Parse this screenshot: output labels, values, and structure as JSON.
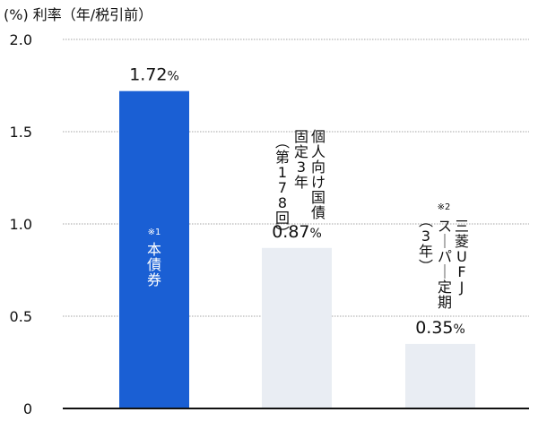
{
  "chart_data": {
    "type": "bar",
    "unit_label": "(%) 利率（年/税引前）",
    "ylim": [
      0,
      2.0
    ],
    "yticks": [
      "2.0",
      "1.5",
      "1.0",
      "0.5",
      "0"
    ],
    "ytick_values": [
      2.0,
      1.5,
      1.0,
      0.5,
      0
    ],
    "grid": true,
    "categories": [
      "本債券",
      "個人向け国債 固定3年（第178回）",
      "三菱UFJスーパー定期（3年）"
    ],
    "values": [
      1.72,
      0.87,
      0.35
    ],
    "value_labels": [
      "1.72",
      "0.87",
      "0.35"
    ],
    "value_unit": "%",
    "notes": [
      "※1",
      "",
      "※2"
    ],
    "label_columns": [
      [
        "本債券"
      ],
      [
        "個人向け国債",
        "固定3年",
        "（第178回）"
      ],
      [
        "三菱UFJ",
        "スーパー定期",
        "（3年）"
      ]
    ],
    "colors": [
      "#1a5fd4",
      "#e9edf3",
      "#e9edf3"
    ],
    "label_colors": [
      "#ffffff",
      "#111111",
      "#111111"
    ]
  }
}
